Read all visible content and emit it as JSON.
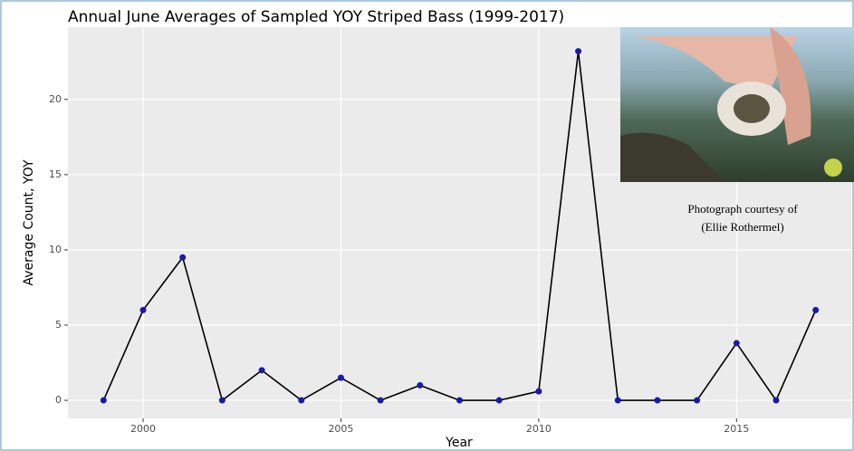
{
  "chart_data": {
    "type": "line",
    "title": "Annual June Averages of Sampled YOY Striped Bass (1999-2017)",
    "x_label": "Year",
    "y_label": "Average Count, YOY",
    "x": [
      1999,
      2000,
      2001,
      2002,
      2003,
      2004,
      2005,
      2006,
      2007,
      2008,
      2009,
      2010,
      2011,
      2012,
      2013,
      2014,
      2015,
      2016,
      2017
    ],
    "series": [
      {
        "color": "#000000",
        "marker_color": "#1a1aa8",
        "values": [
          0,
          6,
          9.5,
          0,
          2,
          0,
          1.5,
          0,
          1,
          0,
          0,
          0.6,
          23.2,
          0,
          0,
          0,
          3.8,
          0,
          6
        ]
      }
    ],
    "xlim": [
      1998.1,
      2017.9
    ],
    "xticks": [
      2000,
      2005,
      2010,
      2015
    ],
    "ylim": [
      -1.2,
      24.8
    ],
    "yticks": [
      0,
      5,
      10,
      15,
      20
    ],
    "grid": true,
    "annotation": [
      "Photograph courtesy of",
      "(Ellie Rothermel)"
    ]
  }
}
